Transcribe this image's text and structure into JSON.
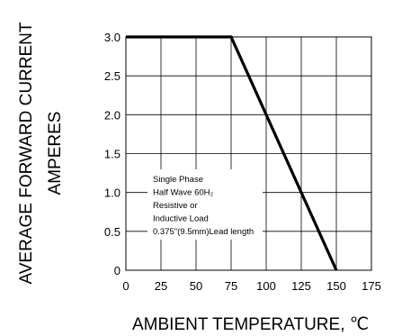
{
  "chart_data": {
    "type": "line",
    "title": "",
    "xlabel": "AMBIENT TEMPERATURE, ℃",
    "ylabel_lines": [
      "AVERAGE FORWARD CURRENT",
      "AMPERES"
    ],
    "x_ticks": [
      "0",
      "25",
      "50",
      "75",
      "100",
      "125",
      "150",
      "175"
    ],
    "y_ticks": [
      "0",
      "0.5",
      "1.0",
      "1.5",
      "2.0",
      "2.5",
      "3.0"
    ],
    "xlim": [
      0,
      175
    ],
    "ylim": [
      0,
      3.0
    ],
    "grid": true,
    "series": [
      {
        "x": [
          0,
          75,
          150
        ],
        "y": [
          3.0,
          3.0,
          0
        ]
      }
    ],
    "annotation_lines": [
      "Single Phase",
      "Half Wave 60H₂",
      "Resistive or",
      "Inductive Load",
      "0.375\"(9.5mm)Lead length"
    ]
  },
  "colors": {
    "line": "#000000",
    "grid": "#000000",
    "background": "#ffffff"
  }
}
